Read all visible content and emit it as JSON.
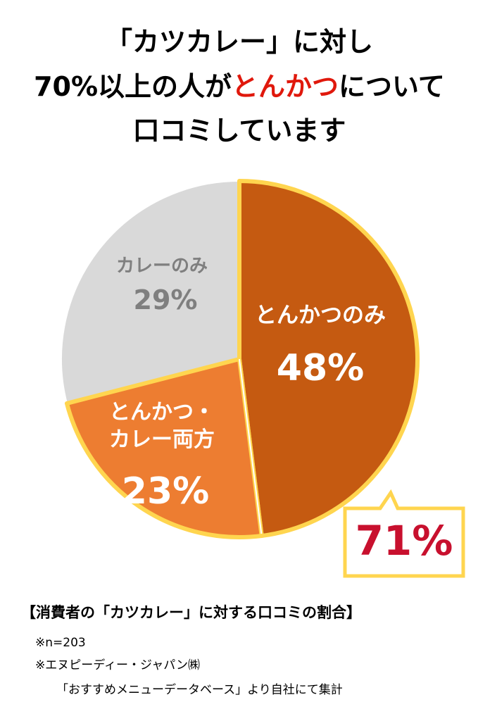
{
  "chart_data": {
    "type": "pie",
    "title": {
      "line1": "「カツカレー」に対し",
      "line2_before": "70%以上の人が",
      "line2_highlight": "とんかつ",
      "line2_after": "について",
      "line3": "口コミしています"
    },
    "categories": [
      "とんかつのみ",
      "とんかつ・カレー両方",
      "カレーのみ"
    ],
    "values": [
      48,
      23,
      29
    ],
    "value_labels": [
      "48%",
      "23%",
      "29%"
    ],
    "colors": [
      "#c55a11",
      "#ed7d31",
      "#d9d9d9"
    ],
    "highlight_color": "#ffd54f",
    "annotation": "71%",
    "caption": "【消費者の「カツカレー」に対する口コミの割合】",
    "notes": [
      "※n=203",
      "※エヌピーディー・ジャパン㈱",
      "「おすすめメニューデータベース」より自社にて集計"
    ]
  }
}
